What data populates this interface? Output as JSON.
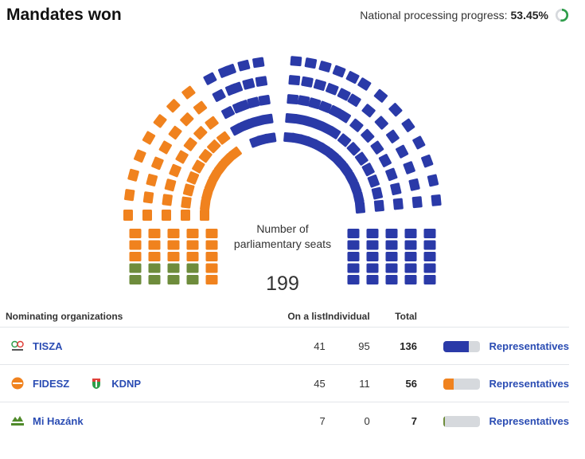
{
  "header": {
    "title": "Mandates won",
    "progress_label": "National processing progress:",
    "progress_value": "53.45%",
    "progress_fraction": 0.5345
  },
  "chamber": {
    "center_label": "Number of parliamentary seats",
    "total_seats": "199",
    "colors": {
      "tisza": "#2a3aa8",
      "fidesz": "#f0821e",
      "mi": "#6e8c3c",
      "empty": "#d6d9dd"
    }
  },
  "table": {
    "headers": {
      "org": "Nominating organizations",
      "list": "On a list",
      "individual": "Individual",
      "total": "Total"
    },
    "rows": [
      {
        "names": [
          "TISZA"
        ],
        "logos": [
          "tisza-logo"
        ],
        "list": "41",
        "individual": "95",
        "total": "136",
        "share": 0.683,
        "color": "#2a3aa8",
        "link": "Representatives"
      },
      {
        "names": [
          "FIDESZ",
          "KDNP"
        ],
        "logos": [
          "fidesz-logo",
          "kdnp-logo"
        ],
        "list": "45",
        "individual": "11",
        "total": "56",
        "share": 0.281,
        "color": "#f0821e",
        "link": "Representatives"
      },
      {
        "names": [
          "Mi Hazánk"
        ],
        "logos": [
          "mi-hazank-logo"
        ],
        "list": "7",
        "individual": "0",
        "total": "7",
        "share": 0.035,
        "color": "#6e8c3c",
        "link": "Representatives"
      }
    ]
  }
}
